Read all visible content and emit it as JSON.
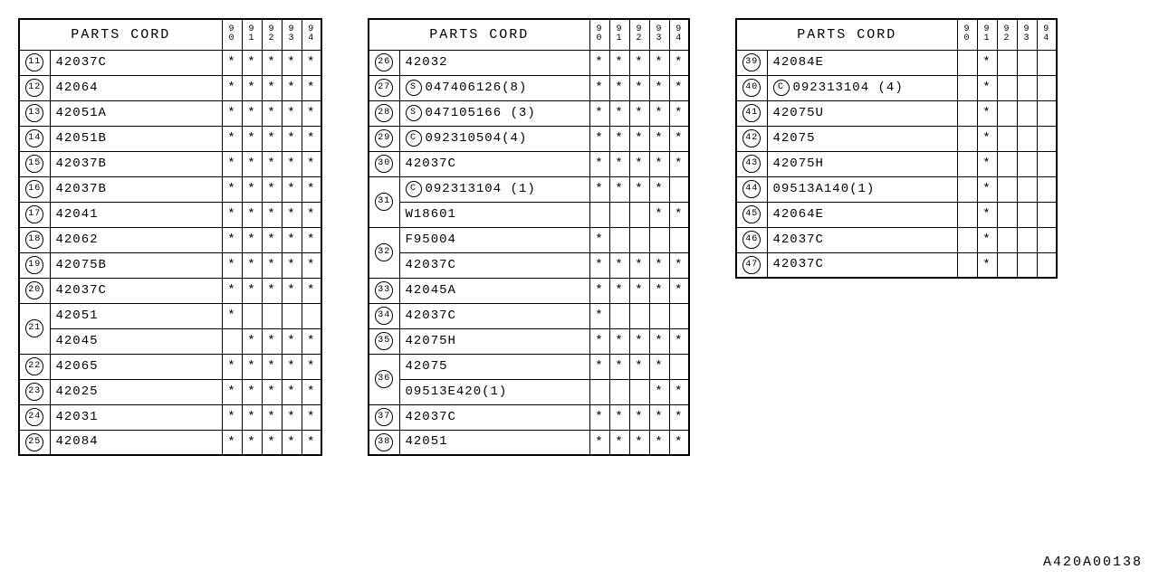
{
  "header": {
    "title": "PARTS CORD",
    "years": [
      "90",
      "91",
      "92",
      "93",
      "94"
    ]
  },
  "mark": "*",
  "footer": "A420A00138",
  "tables": [
    {
      "partColClass": "col-part",
      "rows": [
        {
          "ref": "11",
          "parts": [
            {
              "text": "42037C",
              "marks": [
                "*",
                "*",
                "*",
                "*",
                "*"
              ]
            }
          ]
        },
        {
          "ref": "12",
          "parts": [
            {
              "text": "42064",
              "marks": [
                "*",
                "*",
                "*",
                "*",
                "*"
              ]
            }
          ]
        },
        {
          "ref": "13",
          "parts": [
            {
              "text": "42051A",
              "marks": [
                "*",
                "*",
                "*",
                "*",
                "*"
              ]
            }
          ]
        },
        {
          "ref": "14",
          "parts": [
            {
              "text": "42051B",
              "marks": [
                "*",
                "*",
                "*",
                "*",
                "*"
              ]
            }
          ]
        },
        {
          "ref": "15",
          "parts": [
            {
              "text": "42037B",
              "marks": [
                "*",
                "*",
                "*",
                "*",
                "*"
              ]
            }
          ]
        },
        {
          "ref": "16",
          "parts": [
            {
              "text": "42037B",
              "marks": [
                "*",
                "*",
                "*",
                "*",
                "*"
              ]
            }
          ]
        },
        {
          "ref": "17",
          "parts": [
            {
              "text": "42041",
              "marks": [
                "*",
                "*",
                "*",
                "*",
                "*"
              ]
            }
          ]
        },
        {
          "ref": "18",
          "parts": [
            {
              "text": "42062",
              "marks": [
                "*",
                "*",
                "*",
                "*",
                "*"
              ]
            }
          ]
        },
        {
          "ref": "19",
          "parts": [
            {
              "text": "42075B",
              "marks": [
                "*",
                "*",
                "*",
                "*",
                "*"
              ]
            }
          ]
        },
        {
          "ref": "20",
          "parts": [
            {
              "text": "42037C",
              "marks": [
                "*",
                "*",
                "*",
                "*",
                "*"
              ]
            }
          ]
        },
        {
          "ref": "21",
          "parts": [
            {
              "text": "42051",
              "marks": [
                "*",
                "",
                "",
                "",
                ""
              ]
            },
            {
              "text": "42045",
              "marks": [
                "",
                "*",
                "*",
                "*",
                "*"
              ]
            }
          ]
        },
        {
          "ref": "22",
          "parts": [
            {
              "text": "42065",
              "marks": [
                "*",
                "*",
                "*",
                "*",
                "*"
              ]
            }
          ]
        },
        {
          "ref": "23",
          "parts": [
            {
              "text": "42025",
              "marks": [
                "*",
                "*",
                "*",
                "*",
                "*"
              ]
            }
          ]
        },
        {
          "ref": "24",
          "parts": [
            {
              "text": "42031",
              "marks": [
                "*",
                "*",
                "*",
                "*",
                "*"
              ]
            }
          ]
        },
        {
          "ref": "25",
          "parts": [
            {
              "text": "42084",
              "marks": [
                "*",
                "*",
                "*",
                "*",
                "*"
              ]
            }
          ]
        }
      ]
    },
    {
      "partColClass": "col-part-wide",
      "rows": [
        {
          "ref": "26",
          "parts": [
            {
              "text": "42032",
              "marks": [
                "*",
                "*",
                "*",
                "*",
                "*"
              ]
            }
          ]
        },
        {
          "ref": "27",
          "parts": [
            {
              "prefix": "S",
              "text": "047406126(8)",
              "marks": [
                "*",
                "*",
                "*",
                "*",
                "*"
              ]
            }
          ]
        },
        {
          "ref": "28",
          "parts": [
            {
              "prefix": "S",
              "text": "047105166 (3)",
              "marks": [
                "*",
                "*",
                "*",
                "*",
                "*"
              ]
            }
          ]
        },
        {
          "ref": "29",
          "parts": [
            {
              "prefix": "C",
              "text": "092310504(4)",
              "marks": [
                "*",
                "*",
                "*",
                "*",
                "*"
              ]
            }
          ]
        },
        {
          "ref": "30",
          "parts": [
            {
              "text": "42037C",
              "marks": [
                "*",
                "*",
                "*",
                "*",
                "*"
              ]
            }
          ]
        },
        {
          "ref": "31",
          "parts": [
            {
              "prefix": "C",
              "text": "092313104 (1)",
              "marks": [
                "*",
                "*",
                "*",
                "*",
                ""
              ]
            },
            {
              "text": "W18601",
              "marks": [
                "",
                "",
                "",
                "*",
                "*"
              ]
            }
          ]
        },
        {
          "ref": "32",
          "parts": [
            {
              "text": "F95004",
              "marks": [
                "*",
                "",
                "",
                "",
                ""
              ]
            },
            {
              "text": "42037C",
              "marks": [
                "*",
                "*",
                "*",
                "*",
                "*"
              ]
            }
          ]
        },
        {
          "ref": "33",
          "parts": [
            {
              "text": "42045A",
              "marks": [
                "*",
                "*",
                "*",
                "*",
                "*"
              ]
            }
          ]
        },
        {
          "ref": "34",
          "parts": [
            {
              "text": "42037C",
              "marks": [
                "*",
                "",
                "",
                "",
                ""
              ]
            }
          ]
        },
        {
          "ref": "35",
          "parts": [
            {
              "text": "42075H",
              "marks": [
                "*",
                "*",
                "*",
                "*",
                "*"
              ]
            }
          ]
        },
        {
          "ref": "36",
          "parts": [
            {
              "text": "42075",
              "marks": [
                "*",
                "*",
                "*",
                "*",
                ""
              ]
            },
            {
              "text": "09513E420(1)",
              "marks": [
                "",
                "",
                "",
                "*",
                "*"
              ]
            }
          ]
        },
        {
          "ref": "37",
          "parts": [
            {
              "text": "42037C",
              "marks": [
                "*",
                "*",
                "*",
                "*",
                "*"
              ]
            }
          ]
        },
        {
          "ref": "38",
          "parts": [
            {
              "text": "42051",
              "marks": [
                "*",
                "*",
                "*",
                "*",
                "*"
              ]
            }
          ]
        }
      ]
    },
    {
      "partColClass": "col-part-wide",
      "rows": [
        {
          "ref": "39",
          "parts": [
            {
              "text": "42084E",
              "marks": [
                "",
                "*",
                "",
                "",
                ""
              ]
            }
          ]
        },
        {
          "ref": "40",
          "parts": [
            {
              "prefix": "C",
              "text": "092313104 (4)",
              "marks": [
                "",
                "*",
                "",
                "",
                ""
              ]
            }
          ]
        },
        {
          "ref": "41",
          "parts": [
            {
              "text": "42075U",
              "marks": [
                "",
                "*",
                "",
                "",
                ""
              ]
            }
          ]
        },
        {
          "ref": "42",
          "parts": [
            {
              "text": "42075",
              "marks": [
                "",
                "*",
                "",
                "",
                ""
              ]
            }
          ]
        },
        {
          "ref": "43",
          "parts": [
            {
              "text": "42075H",
              "marks": [
                "",
                "*",
                "",
                "",
                ""
              ]
            }
          ]
        },
        {
          "ref": "44",
          "parts": [
            {
              "text": "09513A140(1)",
              "marks": [
                "",
                "*",
                "",
                "",
                ""
              ]
            }
          ]
        },
        {
          "ref": "45",
          "parts": [
            {
              "text": "42064E",
              "marks": [
                "",
                "*",
                "",
                "",
                ""
              ]
            }
          ]
        },
        {
          "ref": "46",
          "parts": [
            {
              "text": "42037C",
              "marks": [
                "",
                "*",
                "",
                "",
                ""
              ]
            }
          ]
        },
        {
          "ref": "47",
          "parts": [
            {
              "text": "42037C",
              "marks": [
                "",
                "*",
                "",
                "",
                ""
              ]
            }
          ]
        }
      ]
    }
  ]
}
